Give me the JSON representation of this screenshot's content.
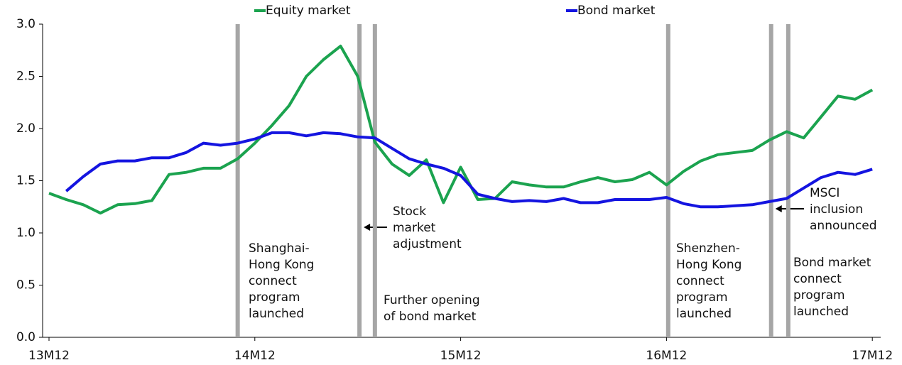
{
  "chart_data": {
    "type": "line",
    "categories": [
      "13M12",
      null,
      null,
      null,
      null,
      null,
      null,
      null,
      null,
      null,
      null,
      null,
      "14M12",
      null,
      null,
      null,
      null,
      null,
      null,
      null,
      null,
      null,
      null,
      null,
      "15M12",
      null,
      null,
      null,
      null,
      null,
      null,
      null,
      null,
      null,
      null,
      null,
      "16M12",
      null,
      null,
      null,
      null,
      null,
      null,
      null,
      null,
      null,
      null,
      null,
      "17M12"
    ],
    "series": [
      {
        "name": "Equity market",
        "color": "#1ba34f",
        "values": [
          1.38,
          1.32,
          1.27,
          1.19,
          1.27,
          1.28,
          1.31,
          1.56,
          1.58,
          1.62,
          1.62,
          1.71,
          1.86,
          2.03,
          2.22,
          2.5,
          2.66,
          2.79,
          2.5,
          1.87,
          1.66,
          1.55,
          1.7,
          1.29,
          1.63,
          1.32,
          1.33,
          1.49,
          1.46,
          1.44,
          1.44,
          1.49,
          1.53,
          1.49,
          1.51,
          1.58,
          1.46,
          1.59,
          1.69,
          1.75,
          1.77,
          1.79,
          1.89,
          1.97,
          1.91,
          2.11,
          2.31,
          2.28,
          2.37
        ]
      },
      {
        "name": "Bond market",
        "color": "#1414e0",
        "values": [
          null,
          1.4,
          1.54,
          1.66,
          1.69,
          1.69,
          1.72,
          1.72,
          1.77,
          1.86,
          1.84,
          1.86,
          1.9,
          1.96,
          1.96,
          1.93,
          1.96,
          1.95,
          1.92,
          1.91,
          1.81,
          1.71,
          1.66,
          1.62,
          1.55,
          1.37,
          1.33,
          1.3,
          1.31,
          1.3,
          1.33,
          1.29,
          1.29,
          1.32,
          1.32,
          1.32,
          1.34,
          1.28,
          1.25,
          1.25,
          1.26,
          1.27,
          1.3,
          1.33,
          1.43,
          1.53,
          1.58,
          1.56,
          1.61
        ]
      }
    ],
    "ylim": [
      0,
      3.0
    ],
    "yticks": [
      {
        "value": 0,
        "label": "0.0"
      },
      {
        "value": 0.5,
        "label": "0.5"
      },
      {
        "value": 1,
        "label": "1.0"
      },
      {
        "value": 1.5,
        "label": "1.5"
      },
      {
        "value": 2,
        "label": "2.0"
      },
      {
        "value": 2.5,
        "label": "2.5"
      },
      {
        "value": 3,
        "label": "3.0"
      }
    ],
    "events": [
      {
        "x": 11,
        "lines": [
          "Shanghai-",
          "Hong Kong",
          "connect",
          "program",
          "launched"
        ]
      },
      {
        "x": 18.1,
        "lines": [
          "Stock",
          "market",
          "adjustment"
        ]
      },
      {
        "x": 19,
        "lines": [
          "Further opening",
          "of bond market"
        ]
      },
      {
        "x": 36.1,
        "lines": [
          "Shenzhen-",
          "Hong Kong",
          "connect",
          "program",
          "launched"
        ]
      },
      {
        "x": 42.1,
        "lines": [
          "MSCI",
          "inclusion",
          "announced"
        ]
      },
      {
        "x": 43.1,
        "lines": [
          "Bond market",
          "connect",
          "program",
          "launched"
        ]
      }
    ]
  }
}
